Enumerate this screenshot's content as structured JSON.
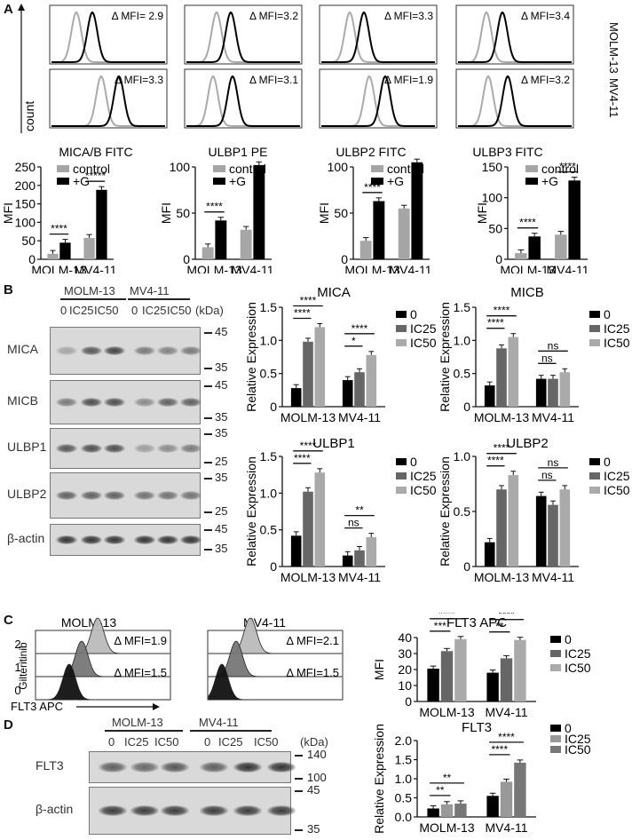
{
  "panels": {
    "A": "A",
    "B": "B",
    "C": "C",
    "D": "D"
  },
  "hist_A": {
    "y_label": "count",
    "row_labels": [
      "MOLM-13",
      "MV4-11"
    ],
    "columns": [
      "MICA/B FITC",
      "ULBP1 PE",
      "ULBP2 FITC",
      "ULBP3 FITC"
    ],
    "mfi": [
      [
        "Δ MFI= 2.9",
        "Δ MFI=3.2",
        "Δ MFI=3.3",
        "Δ MFI=3.4"
      ],
      [
        "Δ MFI=3.3",
        "Δ MFI=3.1",
        "Δ MFI=1.9",
        "Δ MFI=3.2"
      ]
    ],
    "colors": {
      "control": "#aaaaaa",
      "treated": "#000000"
    }
  },
  "chart_data": [
    {
      "type": "bar",
      "ylabel": "MFI",
      "ylim": [
        0,
        250
      ],
      "yticks": [
        "0",
        "50",
        "100",
        "150",
        "200",
        "250"
      ],
      "categories": [
        "MOLM-13",
        "MV4-11"
      ],
      "series": [
        {
          "name": "control",
          "values": [
            15,
            58
          ],
          "color": "#a6a6a6"
        },
        {
          "name": "+G",
          "values": [
            45,
            188
          ],
          "color": "#000000"
        }
      ],
      "annotations": [
        "****",
        "*****"
      ]
    },
    {
      "type": "bar",
      "ylabel": "MFI",
      "ylim": [
        0,
        100
      ],
      "yticks": [
        "0",
        "50",
        "100"
      ],
      "categories": [
        "MOLM-13",
        "MV4-11"
      ],
      "series": [
        {
          "name": "control",
          "values": [
            13,
            32
          ],
          "color": "#a6a6a6"
        },
        {
          "name": "+G",
          "values": [
            42,
            102
          ],
          "color": "#000000"
        }
      ],
      "annotations": [
        "****",
        "****"
      ]
    },
    {
      "type": "bar",
      "ylabel": "MFI",
      "ylim": [
        0,
        100
      ],
      "yticks": [
        "0",
        "50",
        "100"
      ],
      "categories": [
        "MOLM-13",
        "MV4-11"
      ],
      "series": [
        {
          "name": "control",
          "values": [
            20,
            55
          ],
          "color": "#a6a6a6"
        },
        {
          "name": "+G",
          "values": [
            63,
            105
          ],
          "color": "#000000"
        }
      ],
      "annotations": [
        "****",
        "****"
      ]
    },
    {
      "type": "bar",
      "ylabel": "MFI",
      "ylim": [
        0,
        150
      ],
      "yticks": [
        "0",
        "50",
        "100",
        "150"
      ],
      "categories": [
        "MOLM-13",
        "MV4-11"
      ],
      "series": [
        {
          "name": "control",
          "values": [
            10,
            40
          ],
          "color": "#a6a6a6"
        },
        {
          "name": "+G",
          "values": [
            37,
            128
          ],
          "color": "#000000"
        }
      ],
      "annotations": [
        "****",
        "****"
      ]
    },
    {
      "type": "bar",
      "title": "MICA",
      "ylabel": "Relative Expression",
      "ylim": [
        0,
        1.5
      ],
      "yticks": [
        "0",
        "0.5",
        "1.0",
        "1.5"
      ],
      "categories": [
        "MOLM-13",
        "MV4-11"
      ],
      "series": [
        {
          "name": "0",
          "values": [
            0.28,
            0.4
          ],
          "color": "#000000"
        },
        {
          "name": "IC25",
          "values": [
            0.98,
            0.52
          ],
          "color": "#666666"
        },
        {
          "name": "IC50",
          "values": [
            1.2,
            0.78
          ],
          "color": "#aaaaaa"
        }
      ],
      "annotations": [
        "****",
        "****",
        "****",
        "*"
      ]
    },
    {
      "type": "bar",
      "title": "MICB",
      "ylabel": "Relative Expression",
      "ylim": [
        0,
        1.5
      ],
      "yticks": [
        "0",
        "0.5",
        "1.0",
        "1.5"
      ],
      "categories": [
        "MOLM-13",
        "MV4-11"
      ],
      "series": [
        {
          "name": "0",
          "values": [
            0.32,
            0.42
          ],
          "color": "#000000"
        },
        {
          "name": "IC25",
          "values": [
            0.88,
            0.42
          ],
          "color": "#666666"
        },
        {
          "name": "IC50",
          "values": [
            1.05,
            0.52
          ],
          "color": "#aaaaaa"
        }
      ],
      "annotations": [
        "****",
        "****",
        "ns",
        "ns"
      ]
    },
    {
      "type": "bar",
      "title": "ULBP1",
      "ylabel": "Relative Expression",
      "ylim": [
        0,
        1.5
      ],
      "yticks": [
        "0",
        "0.5",
        "1.0",
        "1.5"
      ],
      "categories": [
        "MOLM-13",
        "MV4-11"
      ],
      "series": [
        {
          "name": "0",
          "values": [
            0.42,
            0.15
          ],
          "color": "#000000"
        },
        {
          "name": "IC25",
          "values": [
            1.02,
            0.22
          ],
          "color": "#666666"
        },
        {
          "name": "IC50",
          "values": [
            1.28,
            0.4
          ],
          "color": "#aaaaaa"
        }
      ],
      "annotations": [
        "****",
        "****",
        "ns",
        "**"
      ]
    },
    {
      "type": "bar",
      "title": "ULBP2",
      "ylabel": "Relative Expression",
      "ylim": [
        0,
        1.0
      ],
      "yticks": [
        "0",
        "0.5",
        "1.0"
      ],
      "categories": [
        "MOLM-13",
        "MV4-11"
      ],
      "series": [
        {
          "name": "0",
          "values": [
            0.22,
            0.64
          ],
          "color": "#000000"
        },
        {
          "name": "IC25",
          "values": [
            0.7,
            0.56
          ],
          "color": "#666666"
        },
        {
          "name": "IC50",
          "values": [
            0.83,
            0.7
          ],
          "color": "#aaaaaa"
        }
      ],
      "annotations": [
        "****",
        "****",
        "ns",
        "ns"
      ]
    },
    {
      "type": "bar",
      "title": "FLT3 APC",
      "ylabel": "MFI",
      "ylim": [
        0,
        40
      ],
      "yticks": [
        "0",
        "10",
        "20",
        "30",
        "40"
      ],
      "categories": [
        "MOLM-13",
        "MV4-11"
      ],
      "series": [
        {
          "name": "0",
          "values": [
            20.5,
            18
          ],
          "color": "#000000"
        },
        {
          "name": "IC25",
          "values": [
            31.5,
            27
          ],
          "color": "#666666"
        },
        {
          "name": "IC50",
          "values": [
            39,
            38.5
          ],
          "color": "#aaaaaa"
        }
      ],
      "annotations": [
        "***",
        "****",
        "**",
        "****"
      ]
    },
    {
      "type": "bar",
      "title": "FLT3",
      "ylabel": "Relative Expression",
      "ylim": [
        0,
        2.0
      ],
      "yticks": [
        "0.0",
        "0.5",
        "1.0",
        "1.5",
        "2.0"
      ],
      "categories": [
        "MOLM-13",
        "MV4-11"
      ],
      "series": [
        {
          "name": "0",
          "values": [
            0.22,
            0.55
          ],
          "color": "#000000"
        },
        {
          "name": "IC25",
          "values": [
            0.33,
            0.92
          ],
          "color": "#999999"
        },
        {
          "name": "IC50",
          "values": [
            0.35,
            1.42
          ],
          "color": "#777777"
        }
      ],
      "annotations": [
        "**",
        "**",
        "****",
        "****"
      ]
    }
  ],
  "western_B": {
    "groups": [
      "MOLM-13",
      "MV4-11"
    ],
    "lanes": [
      "0",
      "IC25",
      "IC50",
      "0",
      "IC25",
      "IC50"
    ],
    "unit": "(kDa)",
    "proteins": [
      "MICA",
      "MICB",
      "ULBP1",
      "ULBP2",
      "β-actin"
    ],
    "markers": [
      [
        "45",
        "35"
      ],
      [
        "45",
        "35"
      ],
      [
        "35",
        "25"
      ],
      [
        "35",
        "25"
      ],
      [
        "45",
        "35"
      ]
    ]
  },
  "hist_C": {
    "titles": [
      "MOLM-13",
      "MV4-11"
    ],
    "row_label": "Gilteritinib",
    "levels": [
      "2",
      "1",
      "0"
    ],
    "mfi": [
      [
        "Δ MFI=1.9",
        "Δ MFI=1.5"
      ],
      [
        "Δ MFI=2.1",
        "Δ MFI=1.5"
      ]
    ],
    "x_label": "FLT3 APC"
  },
  "western_D": {
    "groups": [
      "MOLM-13",
      "MV4-11"
    ],
    "lanes": [
      "0",
      "IC25",
      "IC50",
      "0",
      "IC25",
      "IC50"
    ],
    "unit": "(kDa)",
    "proteins": [
      "FLT3",
      "β-actin"
    ],
    "markers": [
      [
        "140",
        "100"
      ],
      [
        "45",
        "35"
      ]
    ]
  }
}
